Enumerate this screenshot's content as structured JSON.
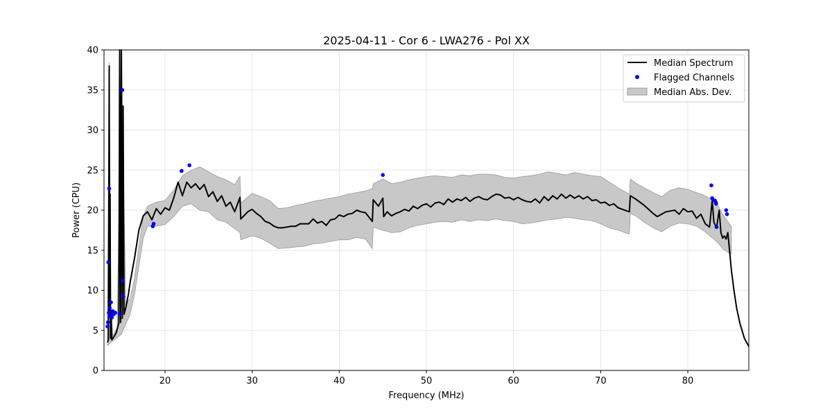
{
  "chart_data": {
    "type": "line",
    "title": "2025-04-11 - Cor 6 - LWA276 - Pol XX",
    "xlabel": "Frequency (MHz)",
    "ylabel": "Power (CPU)",
    "xlim": [
      13,
      87
    ],
    "ylim": [
      0,
      40
    ],
    "xticks": [
      20,
      30,
      40,
      50,
      60,
      70,
      80
    ],
    "yticks": [
      0,
      5,
      10,
      15,
      20,
      25,
      30,
      35,
      40
    ],
    "grid": true,
    "legend_position": "top-right",
    "colors": {
      "median": "#000000",
      "flagged": "#0000ff",
      "mad_fill": "#c8c8c8",
      "mad_edge": "#9a9a9a",
      "grid": "#e6e6e6"
    },
    "legend": [
      {
        "label": "Median Spectrum",
        "kind": "line"
      },
      {
        "label": "Flagged Channels",
        "kind": "marker"
      },
      {
        "label": "Median Abs. Dev.",
        "kind": "patch"
      }
    ],
    "series": [
      {
        "name": "Median Spectrum",
        "x": [
          13.4,
          13.5,
          13.6,
          13.65,
          13.7,
          13.75,
          13.8,
          13.9,
          14.0,
          14.2,
          14.4,
          14.6,
          14.7,
          14.8,
          14.9,
          15.0,
          15.1,
          15.2,
          15.3,
          15.5,
          15.8,
          16.0,
          16.5,
          17.0,
          17.5,
          18.0,
          18.5,
          19.0,
          19.5,
          20.0,
          20.5,
          21.0,
          21.5,
          22.0,
          22.5,
          23.0,
          23.5,
          24.0,
          24.5,
          25.0,
          25.5,
          26.0,
          26.5,
          27.0,
          27.5,
          28.0,
          28.6,
          28.7,
          29.5,
          30.0,
          30.5,
          31.0,
          31.5,
          32.0,
          32.5,
          33.0,
          33.5,
          34.0,
          34.5,
          35.0,
          35.5,
          36.0,
          36.5,
          37.0,
          37.5,
          38.0,
          38.5,
          39.0,
          39.5,
          40.0,
          40.5,
          41.0,
          41.5,
          42.0,
          42.5,
          43.0,
          43.8,
          43.9,
          44.5,
          45.0,
          45.1,
          45.5,
          46.0,
          46.5,
          47.0,
          47.5,
          48.0,
          48.5,
          49.0,
          49.5,
          50.0,
          50.5,
          51.0,
          51.5,
          52.0,
          52.5,
          53.0,
          53.5,
          54.0,
          54.5,
          55.0,
          55.5,
          56.0,
          56.5,
          57.0,
          57.5,
          58.0,
          58.5,
          59.0,
          59.5,
          60.0,
          60.5,
          61.0,
          61.5,
          62.0,
          62.5,
          63.0,
          63.5,
          64.0,
          64.5,
          65.0,
          65.5,
          66.0,
          66.5,
          67.0,
          67.5,
          68.0,
          68.5,
          69.0,
          69.5,
          70.0,
          70.5,
          71.0,
          71.5,
          72.0,
          72.5,
          73.3,
          73.4,
          74.0,
          74.5,
          75.0,
          75.5,
          76.0,
          76.5,
          77.0,
          77.5,
          78.0,
          78.5,
          79.0,
          79.5,
          80.0,
          80.5,
          81.0,
          81.5,
          82.0,
          82.5,
          82.8,
          83.0,
          83.3,
          83.6,
          83.8,
          84.0,
          84.2,
          84.4,
          84.6,
          84.8,
          85.0,
          85.3,
          85.6,
          86.0,
          86.5,
          87.0
        ],
        "values": [
          3.5,
          3.8,
          38.0,
          7.0,
          22.0,
          4.0,
          7.5,
          3.8,
          4.0,
          4.3,
          4.7,
          5.5,
          5.9,
          40.0,
          6.0,
          40.0,
          6.5,
          33.0,
          7.0,
          7.8,
          9.5,
          11.0,
          14.0,
          17.5,
          19.3,
          19.8,
          18.8,
          20.2,
          19.5,
          20.3,
          20.0,
          21.5,
          23.5,
          21.8,
          23.5,
          22.8,
          23.3,
          22.6,
          23.2,
          21.7,
          22.3,
          21.1,
          21.8,
          20.5,
          21.0,
          19.8,
          21.6,
          18.9,
          19.8,
          20.1,
          19.6,
          19.2,
          18.6,
          18.4,
          18.0,
          17.8,
          17.8,
          17.9,
          18.0,
          18.0,
          18.3,
          18.3,
          18.3,
          18.9,
          18.4,
          18.6,
          18.1,
          18.8,
          18.9,
          19.4,
          19.2,
          19.5,
          19.6,
          20.0,
          19.8,
          19.7,
          18.6,
          21.3,
          20.5,
          21.5,
          19.2,
          19.8,
          19.3,
          19.6,
          19.8,
          20.1,
          19.9,
          20.5,
          20.2,
          20.6,
          20.8,
          20.4,
          20.9,
          21.0,
          20.7,
          21.4,
          21.0,
          21.4,
          21.2,
          21.6,
          21.1,
          21.5,
          21.7,
          21.4,
          21.3,
          21.7,
          22.0,
          21.9,
          21.5,
          21.6,
          21.3,
          21.6,
          21.3,
          21.1,
          21.0,
          21.4,
          20.9,
          21.7,
          21.2,
          21.8,
          21.4,
          22.0,
          21.5,
          21.9,
          21.5,
          21.8,
          21.4,
          21.7,
          21.2,
          21.3,
          20.9,
          21.0,
          20.6,
          20.8,
          20.3,
          20.1,
          19.8,
          21.8,
          21.4,
          21.0,
          20.6,
          20.1,
          19.6,
          19.2,
          19.5,
          19.8,
          19.9,
          20.0,
          19.5,
          20.2,
          19.8,
          19.9,
          19.0,
          19.5,
          18.3,
          17.9,
          21.2,
          18.5,
          17.8,
          20.0,
          17.2,
          16.5,
          16.8,
          16.4,
          17.2,
          14.8,
          12.5,
          10.0,
          7.8,
          5.8,
          4.0,
          3.0
        ]
      }
    ],
    "mad_band": {
      "name": "Median Abs. Dev.",
      "x": [
        13.4,
        13.6,
        13.8,
        14.0,
        14.5,
        15.0,
        15.5,
        16.0,
        16.5,
        17.0,
        17.5,
        18.0,
        19.0,
        20.0,
        21.0,
        22.0,
        23.0,
        24.0,
        25.0,
        26.0,
        27.0,
        28.0,
        28.6,
        28.7,
        30.0,
        31.0,
        32.0,
        33.0,
        34.0,
        35.0,
        36.0,
        37.0,
        38.0,
        39.0,
        40.0,
        41.0,
        42.0,
        43.0,
        43.8,
        43.9,
        45.0,
        46.0,
        47.0,
        48.0,
        49.0,
        50.0,
        51.0,
        52.0,
        53.0,
        54.0,
        55.0,
        56.0,
        57.0,
        58.0,
        59.0,
        60.0,
        61.0,
        62.0,
        63.0,
        64.0,
        65.0,
        66.0,
        67.0,
        68.0,
        69.0,
        70.0,
        71.0,
        72.0,
        73.3,
        73.4,
        74.0,
        75.0,
        76.0,
        77.0,
        78.0,
        79.0,
        80.0,
        81.0,
        82.0,
        82.5,
        83.0,
        83.5,
        84.0,
        84.5,
        85.0
      ],
      "lower": [
        3.1,
        3.3,
        3.5,
        3.7,
        4.1,
        4.5,
        5.8,
        7.0,
        9.5,
        13.0,
        16.5,
        18.0,
        18.0,
        18.2,
        19.2,
        20.5,
        20.8,
        20.0,
        19.8,
        18.8,
        18.5,
        17.7,
        17.2,
        16.3,
        16.8,
        16.5,
        15.9,
        15.2,
        15.3,
        15.4,
        15.5,
        15.8,
        15.9,
        16.1,
        16.3,
        16.3,
        16.6,
        16.4,
        15.2,
        17.9,
        17.5,
        17.2,
        17.3,
        17.8,
        18.1,
        18.3,
        18.5,
        18.6,
        18.5,
        18.8,
        18.6,
        18.8,
        18.7,
        18.9,
        18.7,
        18.6,
        18.3,
        18.4,
        18.6,
        18.8,
        18.9,
        19.1,
        19.0,
        18.8,
        18.7,
        18.3,
        17.8,
        17.5,
        17.0,
        19.6,
        19.3,
        18.5,
        17.8,
        17.3,
        18.0,
        18.4,
        18.3,
        18.0,
        17.3,
        16.8,
        16.4,
        15.9,
        15.2,
        14.8,
        14.5
      ],
      "upper": [
        3.9,
        38.5,
        8.0,
        4.3,
        5.3,
        40.0,
        8.2,
        9.0,
        11.5,
        15.5,
        19.3,
        20.5,
        21.0,
        21.2,
        22.5,
        24.3,
        25.0,
        25.4,
        24.8,
        24.2,
        23.8,
        23.2,
        24.2,
        20.9,
        22.1,
        21.7,
        21.2,
        20.2,
        20.3,
        20.6,
        20.8,
        21.1,
        21.3,
        21.5,
        21.7,
        22.0,
        22.2,
        22.4,
        22.7,
        23.3,
        23.9,
        23.3,
        23.5,
        23.8,
        24.0,
        24.2,
        24.3,
        24.2,
        24.1,
        24.4,
        24.3,
        24.5,
        24.5,
        24.4,
        24.1,
        24.0,
        24.2,
        24.3,
        24.5,
        24.8,
        24.6,
        24.4,
        24.7,
        24.5,
        24.3,
        24.2,
        23.5,
        22.8,
        22.0,
        23.9,
        23.4,
        22.8,
        22.2,
        21.7,
        22.5,
        22.8,
        22.6,
        22.2,
        21.8,
        21.5,
        21.0,
        20.5,
        19.5,
        18.7,
        18.0
      ]
    },
    "flagged_channels": {
      "name": "Flagged Channels",
      "x": [
        13.4,
        13.45,
        13.5,
        13.55,
        13.6,
        13.65,
        13.7,
        13.8,
        13.9,
        14.0,
        14.1,
        14.3,
        14.8,
        15.1,
        15.15,
        15.2,
        18.6,
        18.7,
        21.9,
        22.8,
        45.0,
        82.7,
        82.8,
        83.1,
        83.2,
        83.25,
        83.3,
        84.4,
        84.5
      ],
      "values": [
        5.5,
        6.0,
        13.5,
        7.2,
        22.7,
        7.8,
        6.8,
        8.5,
        6.6,
        7.4,
        7.0,
        7.2,
        7.0,
        35.0,
        11.2,
        9.2,
        18.0,
        18.3,
        24.9,
        25.6,
        24.4,
        23.1,
        21.5,
        21.2,
        21.0,
        20.8,
        17.9,
        20.0,
        19.5
      ]
    }
  }
}
